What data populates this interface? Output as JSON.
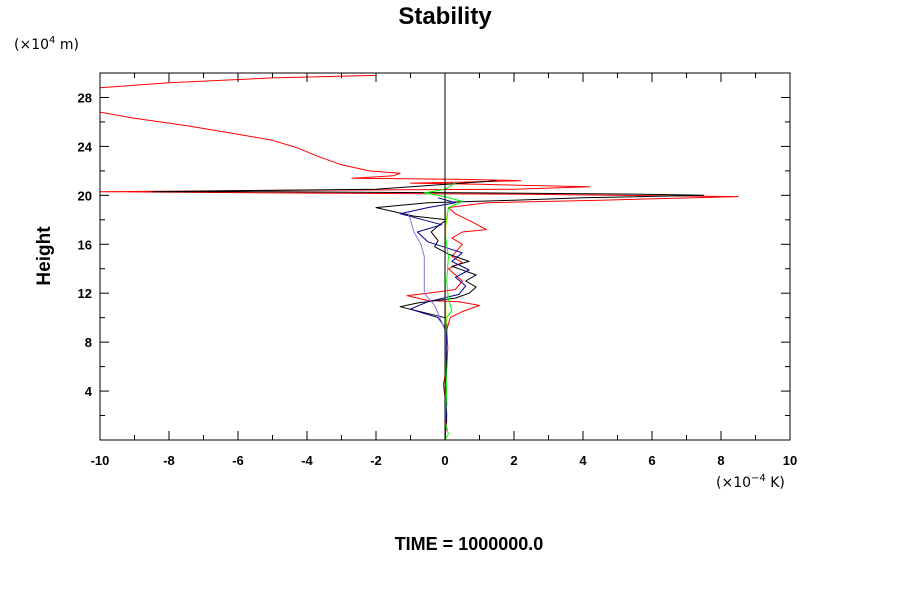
{
  "chart_data": {
    "type": "line",
    "title": "Stability",
    "ylabel": "Height",
    "x_unit_base": "(×10",
    "x_unit_exp": "−4",
    "x_unit_suffix": " K)",
    "y_unit_base": "(×10",
    "y_unit_exp": "4",
    "y_unit_suffix": " m)",
    "time_label": "TIME = 1000000.0",
    "xlim": [
      -10,
      10
    ],
    "ylim": [
      0,
      30
    ],
    "x_major_ticks": [
      -10,
      -8,
      -6,
      -4,
      -2,
      0,
      2,
      4,
      6,
      8,
      10
    ],
    "x_tick_labels": [
      "-10",
      "-8",
      "-6",
      "-4",
      "-2",
      "0",
      "2",
      "4",
      "6",
      "8",
      "10"
    ],
    "y_major_ticks": [
      4,
      8,
      12,
      16,
      20,
      24,
      28
    ],
    "y_tick_labels": [
      "4",
      "8",
      "12",
      "16",
      "20",
      "24",
      "28"
    ],
    "grid": false,
    "zero_line_x": 0,
    "series": [
      {
        "color": "#ff0000",
        "points": [
          [
            0.0,
            0.0
          ],
          [
            0.05,
            1.5
          ],
          [
            0.03,
            3.0
          ],
          [
            -0.05,
            4.5
          ],
          [
            0.05,
            6.0
          ],
          [
            0.08,
            7.5
          ],
          [
            0.05,
            9.0
          ],
          [
            0.15,
            10.0
          ],
          [
            0.5,
            10.5
          ],
          [
            1.0,
            11.0
          ],
          [
            0.4,
            11.3
          ],
          [
            -0.5,
            11.4
          ],
          [
            -1.1,
            11.8
          ],
          [
            -0.5,
            12.0
          ],
          [
            0.3,
            12.3
          ],
          [
            0.5,
            13.0
          ],
          [
            0.1,
            14.0
          ],
          [
            0.5,
            14.5
          ],
          [
            0.2,
            15.0
          ],
          [
            0.5,
            16.0
          ],
          [
            0.2,
            16.5
          ],
          [
            0.5,
            17.0
          ],
          [
            1.2,
            17.2
          ],
          [
            0.8,
            17.8
          ],
          [
            0.3,
            18.5
          ],
          [
            0.1,
            19.0
          ],
          [
            1.2,
            19.4
          ],
          [
            4.5,
            19.6
          ],
          [
            8.5,
            19.9
          ],
          [
            2.0,
            20.1
          ],
          [
            -5.0,
            20.2
          ],
          [
            -10.0,
            20.3
          ],
          [
            -5.0,
            20.4
          ],
          [
            2.0,
            20.5
          ],
          [
            4.2,
            20.7
          ],
          [
            1.0,
            20.9
          ],
          [
            -1.0,
            21.0
          ],
          [
            0.8,
            21.1
          ],
          [
            2.2,
            21.2
          ],
          [
            0.5,
            21.3
          ],
          [
            -2.7,
            21.4
          ],
          [
            -1.5,
            21.6
          ],
          [
            -1.3,
            21.8
          ],
          [
            -2.2,
            22.0
          ],
          [
            -3.0,
            22.5
          ],
          [
            -3.7,
            23.2
          ],
          [
            -4.3,
            23.9
          ],
          [
            -5.0,
            24.5
          ],
          [
            -6.0,
            25.0
          ],
          [
            -7.5,
            25.7
          ],
          [
            -9.0,
            26.3
          ],
          [
            -10.0,
            26.8
          ]
        ]
      },
      {
        "color": "#ff0000",
        "points": [
          [
            -10.0,
            28.8
          ],
          [
            -8.0,
            29.2
          ],
          [
            -5.0,
            29.6
          ],
          [
            -2.0,
            29.8
          ],
          [
            -2.0,
            29.9
          ]
        ]
      },
      {
        "color": "#000000",
        "points": [
          [
            0.0,
            0.0
          ],
          [
            0.05,
            2.0
          ],
          [
            0.02,
            4.0
          ],
          [
            0.05,
            6.0
          ],
          [
            0.03,
            8.0
          ],
          [
            0.05,
            9.5
          ],
          [
            0.0,
            10.0
          ],
          [
            -1.3,
            10.9
          ],
          [
            -0.8,
            11.2
          ],
          [
            0.3,
            11.6
          ],
          [
            0.7,
            12.0
          ],
          [
            0.9,
            12.5
          ],
          [
            0.6,
            13.0
          ],
          [
            0.9,
            13.5
          ],
          [
            0.2,
            14.2
          ],
          [
            0.7,
            14.6
          ],
          [
            0.1,
            15.2
          ],
          [
            -0.3,
            15.8
          ],
          [
            -0.2,
            16.3
          ],
          [
            -0.4,
            17.0
          ],
          [
            -0.2,
            17.5
          ],
          [
            0.05,
            18.0
          ],
          [
            -0.9,
            18.3
          ],
          [
            -2.0,
            19.0
          ],
          [
            -0.5,
            19.4
          ],
          [
            2.0,
            19.6
          ],
          [
            4.0,
            19.8
          ],
          [
            7.5,
            20.0
          ],
          [
            5.5,
            20.1
          ],
          [
            1.0,
            20.2
          ],
          [
            -5.0,
            20.3
          ],
          [
            -8.5,
            20.3
          ],
          [
            -2.0,
            20.5
          ],
          [
            0.5,
            21.0
          ],
          [
            1.5,
            21.2
          ]
        ]
      },
      {
        "color": "#00008b",
        "points": [
          [
            0.0,
            0.0
          ],
          [
            0.05,
            3.0
          ],
          [
            0.02,
            6.0
          ],
          [
            0.05,
            9.0
          ],
          [
            -0.2,
            10.0
          ],
          [
            -1.0,
            10.7
          ],
          [
            -0.5,
            11.3
          ],
          [
            0.4,
            11.9
          ],
          [
            0.6,
            12.6
          ],
          [
            0.3,
            13.3
          ],
          [
            0.7,
            13.9
          ],
          [
            0.2,
            14.6
          ],
          [
            0.5,
            15.3
          ],
          [
            -0.5,
            16.2
          ],
          [
            -0.8,
            17.0
          ],
          [
            -0.1,
            17.6
          ],
          [
            -1.3,
            18.5
          ],
          [
            -0.5,
            19.0
          ],
          [
            0.3,
            19.4
          ],
          [
            -0.2,
            19.8
          ]
        ]
      },
      {
        "color": "#00ff00",
        "points": [
          [
            0.0,
            0.0
          ],
          [
            0.1,
            0.5
          ],
          [
            0.0,
            1.5
          ],
          [
            0.05,
            4.0
          ],
          [
            0.0,
            8.0
          ],
          [
            0.05,
            10.0
          ],
          [
            0.2,
            10.6
          ],
          [
            0.1,
            11.5
          ],
          [
            0.05,
            13.0
          ],
          [
            0.1,
            15.0
          ],
          [
            0.0,
            17.0
          ],
          [
            0.1,
            19.0
          ],
          [
            0.5,
            19.5
          ],
          [
            0.0,
            19.9
          ],
          [
            -0.6,
            20.2
          ],
          [
            0.0,
            20.5
          ],
          [
            0.3,
            21.0
          ]
        ]
      },
      {
        "color": "#9370db",
        "points": [
          [
            0.0,
            0.0
          ],
          [
            0.0,
            5.0
          ],
          [
            0.0,
            9.0
          ],
          [
            -0.3,
            11.0
          ],
          [
            -0.6,
            12.0
          ],
          [
            -0.6,
            13.0
          ],
          [
            -0.6,
            14.0
          ],
          [
            -0.6,
            15.0
          ],
          [
            -0.7,
            16.0
          ],
          [
            -0.9,
            17.0
          ],
          [
            -1.0,
            18.0
          ],
          [
            -1.1,
            18.7
          ]
        ]
      },
      {
        "color": "#e6c800",
        "points": [
          [
            0.0,
            0.0
          ],
          [
            0.02,
            3.0
          ],
          [
            0.0,
            6.0
          ],
          [
            0.03,
            10.0
          ],
          [
            0.0,
            14.0
          ],
          [
            0.03,
            18.0
          ],
          [
            0.0,
            20.0
          ]
        ]
      }
    ]
  }
}
